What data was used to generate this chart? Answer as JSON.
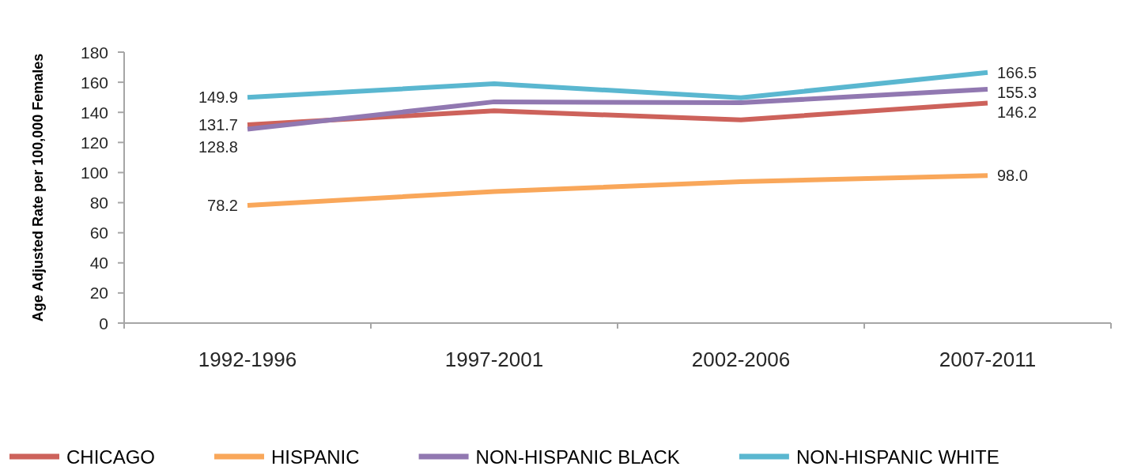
{
  "chart_data": {
    "type": "line",
    "ylabel": "Age Adjusted Rate per 100,000 Females",
    "categories": [
      "1992-1996",
      "1997-2001",
      "2002-2006",
      "2007-2011"
    ],
    "series": [
      {
        "name": "CHICAGO",
        "color": "#cd625b",
        "values": [
          131.7,
          141,
          135,
          146.2
        ],
        "value_labels": [
          "131.7",
          null,
          null,
          "146.2"
        ]
      },
      {
        "name": "HISPANIC",
        "color": "#f9a75a",
        "values": [
          78.2,
          87.4,
          93.9,
          98.0
        ],
        "value_labels": [
          "78.2",
          null,
          null,
          "98.0"
        ]
      },
      {
        "name": "NON-HISPANIC BLACK",
        "color": "#9178b1",
        "values": [
          128.8,
          147,
          146.4,
          155.3
        ],
        "value_labels": [
          "128.8",
          null,
          null,
          "155.3"
        ]
      },
      {
        "name": "NON-HISPANIC WHITE",
        "color": "#5ab7d0",
        "values": [
          149.9,
          159,
          149.7,
          166.5
        ],
        "value_labels": [
          "149.9",
          null,
          null,
          "166.5"
        ]
      }
    ],
    "ylim": [
      0,
      180
    ],
    "yticks": [
      0,
      20,
      40,
      60,
      80,
      100,
      120,
      140,
      160,
      180
    ],
    "legend": "bottom"
  }
}
